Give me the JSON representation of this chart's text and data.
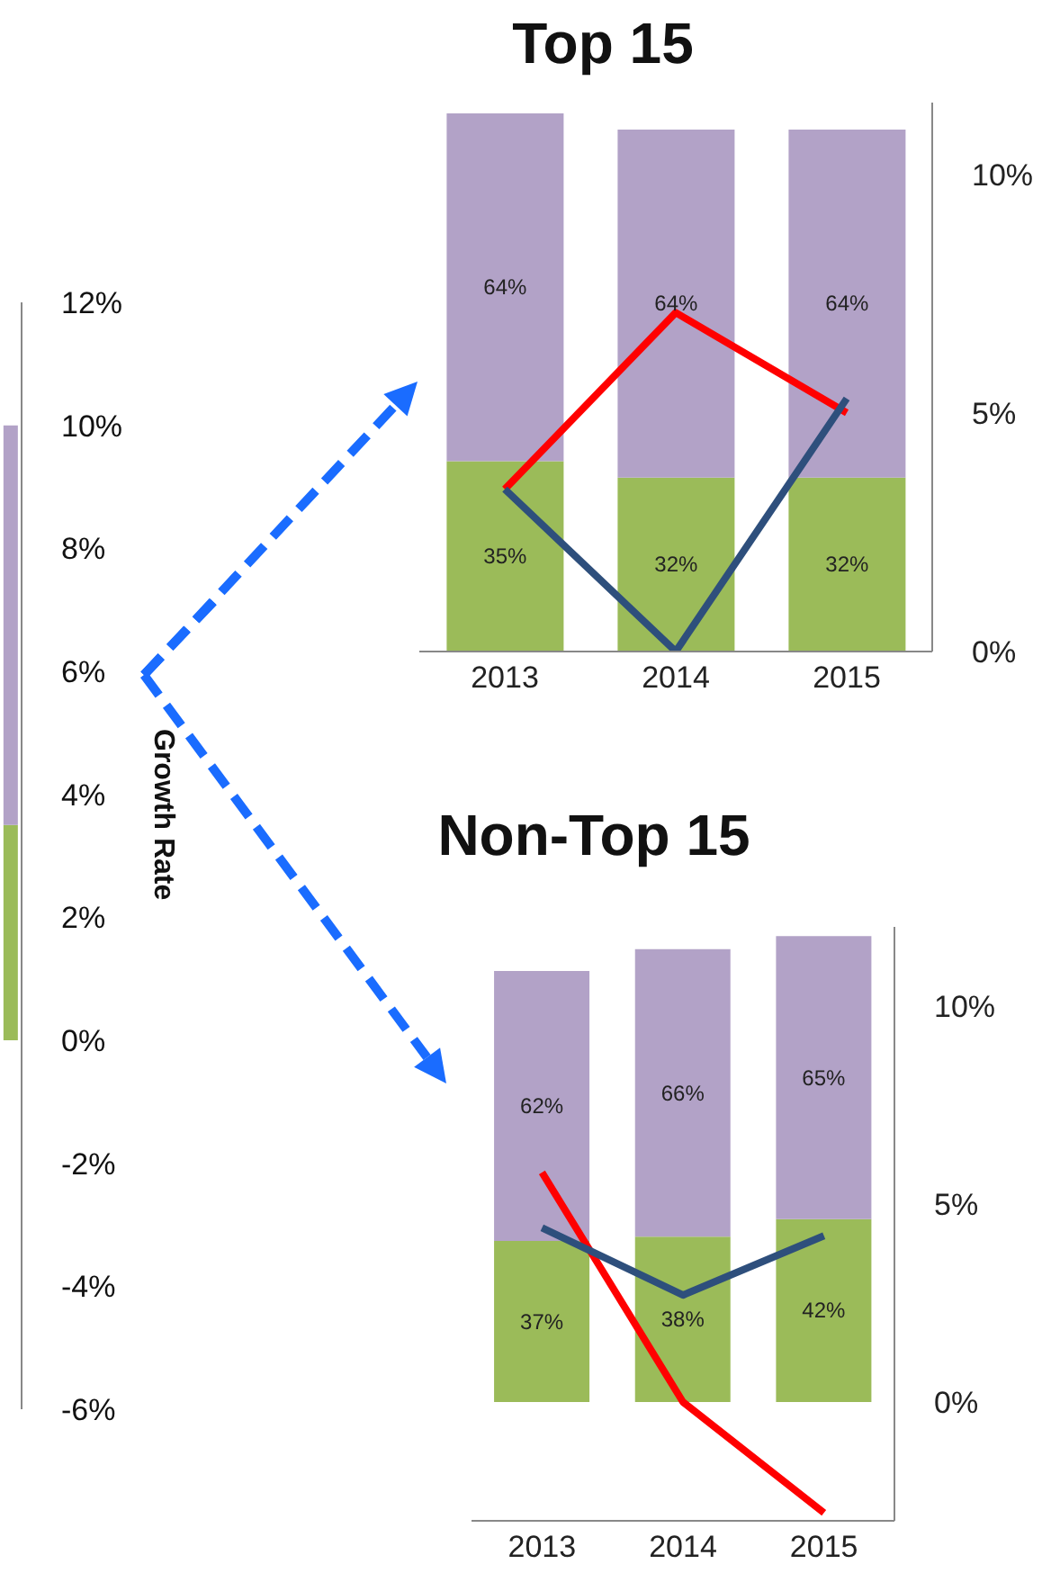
{
  "chart_data": [
    {
      "type": "bar",
      "stacked": true,
      "categories": [
        null
      ],
      "ylabel": "Growth Rate",
      "ylim": [
        -6,
        12
      ],
      "yticks": [
        {
          "value": -6,
          "label": "-6%"
        },
        {
          "value": -4,
          "label": "-4%"
        },
        {
          "value": -2,
          "label": "-2%"
        },
        {
          "value": 0,
          "label": "0%"
        },
        {
          "value": 2,
          "label": "2%"
        },
        {
          "value": 4,
          "label": "4%"
        },
        {
          "value": 6,
          "label": "6%"
        },
        {
          "value": 8,
          "label": "8%"
        },
        {
          "value": 10,
          "label": "10%"
        },
        {
          "value": 12,
          "label": "12%"
        }
      ],
      "series": [
        {
          "color": "#9bbb59",
          "values": [
            3.5
          ]
        },
        {
          "color": "#b2a2c7",
          "values": [
            6.5
          ]
        }
      ]
    },
    {
      "type": "bar",
      "title": "Top 15",
      "stacked": true,
      "categories": [
        "2013",
        "2014",
        "2015"
      ],
      "y2lim": [
        0,
        11.5
      ],
      "y2ticks": [
        {
          "value": 0,
          "label": "0%"
        },
        {
          "value": 5,
          "label": "5%"
        },
        {
          "value": 10,
          "label": "10%"
        }
      ],
      "series": [
        {
          "color": "#9bbb59",
          "values": [
            35,
            32,
            32
          ],
          "value_labels": [
            "35%",
            "32%",
            "32%"
          ]
        },
        {
          "color": "#b2a2c7",
          "values": [
            64,
            64,
            64
          ],
          "value_labels": [
            "64%",
            "64%",
            "64%"
          ]
        },
        {
          "type": "line",
          "axis": "y2",
          "color": "#ff0000",
          "values": [
            3.4,
            7.1,
            5.0
          ]
        },
        {
          "type": "line",
          "axis": "y2",
          "color": "#2e4f7c",
          "values": [
            3.4,
            0,
            5.3
          ]
        }
      ]
    },
    {
      "type": "bar",
      "title": "Non-Top 15",
      "stacked": true,
      "categories": [
        "2013",
        "2014",
        "2015"
      ],
      "y2lim": [
        -3,
        12
      ],
      "y2ticks": [
        {
          "value": 0,
          "label": "0%"
        },
        {
          "value": 5,
          "label": "5%"
        },
        {
          "value": 10,
          "label": "10%"
        }
      ],
      "series": [
        {
          "color": "#9bbb59",
          "values": [
            37,
            38,
            42
          ],
          "value_labels": [
            "37%",
            "38%",
            "42%"
          ]
        },
        {
          "color": "#b2a2c7",
          "values": [
            62,
            66,
            65
          ],
          "value_labels": [
            "62%",
            "66%",
            "65%"
          ]
        },
        {
          "type": "line",
          "axis": "y2",
          "color": "#ff0000",
          "values": [
            5.8,
            0,
            -2.8
          ]
        },
        {
          "type": "line",
          "axis": "y2",
          "color": "#2e4f7c",
          "values": [
            4.4,
            2.7,
            4.2
          ]
        }
      ]
    }
  ]
}
